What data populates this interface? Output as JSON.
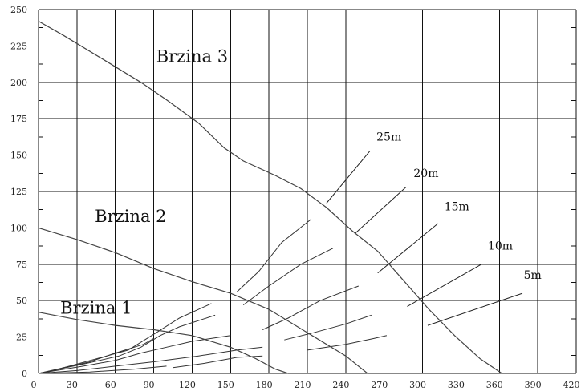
{
  "chart_data": {
    "type": "line",
    "title": "",
    "xlabel": "",
    "ylabel": "",
    "xlim": [
      0,
      420
    ],
    "ylim": [
      0,
      250
    ],
    "x_ticks": [
      0,
      30,
      60,
      90,
      120,
      150,
      180,
      210,
      240,
      270,
      300,
      330,
      360,
      390,
      420
    ],
    "y_ticks": [
      0,
      25,
      50,
      75,
      100,
      125,
      150,
      175,
      200,
      225,
      250
    ],
    "grid": true,
    "series": [
      {
        "name": "Brzina 3",
        "label_pos": [
          120,
          214
        ],
        "points": [
          [
            0,
            242
          ],
          [
            20,
            232
          ],
          [
            50,
            216
          ],
          [
            80,
            200
          ],
          [
            100,
            188
          ],
          [
            125,
            172
          ],
          [
            145,
            155
          ],
          [
            160,
            146
          ],
          [
            185,
            136
          ],
          [
            205,
            127
          ],
          [
            225,
            114
          ],
          [
            245,
            98
          ],
          [
            265,
            84
          ],
          [
            285,
            64
          ],
          [
            305,
            44
          ],
          [
            325,
            26
          ],
          [
            345,
            10
          ],
          [
            362,
            0
          ]
        ]
      },
      {
        "name": "Brzina 2",
        "label_pos": [
          72,
          104
        ],
        "points": [
          [
            0,
            100
          ],
          [
            30,
            92
          ],
          [
            60,
            83
          ],
          [
            90,
            72
          ],
          [
            120,
            63
          ],
          [
            150,
            55
          ],
          [
            180,
            44
          ],
          [
            210,
            28
          ],
          [
            240,
            12
          ],
          [
            257,
            0
          ]
        ]
      },
      {
        "name": "Brzina 1",
        "label_pos": [
          45,
          41
        ],
        "points": [
          [
            0,
            42
          ],
          [
            30,
            37
          ],
          [
            60,
            33
          ],
          [
            90,
            30
          ],
          [
            120,
            26
          ],
          [
            150,
            18
          ],
          [
            170,
            10
          ],
          [
            185,
            3
          ],
          [
            195,
            0
          ]
        ]
      }
    ],
    "iso_curves": [
      {
        "label": "25m",
        "label_pos": [
          264,
          160
        ],
        "leader": [
          [
            225,
            117
          ],
          [
            259,
            153
          ]
        ],
        "segments": [
          [
            [
              0,
              0
            ],
            [
              40,
              8
            ],
            [
              60,
              14
            ],
            [
              82,
              20
            ],
            [
              90,
              24
            ]
          ],
          [
            [
              3,
              0
            ],
            [
              45,
              10
            ],
            [
              70,
              16
            ],
            [
              92,
              28
            ],
            [
              110,
              38
            ],
            [
              135,
              48
            ]
          ],
          [
            [
              155,
              56
            ],
            [
              172,
              70
            ],
            [
              190,
              90
            ],
            [
              213,
              106
            ]
          ]
        ]
      },
      {
        "label": "20m",
        "label_pos": [
          293,
          135
        ],
        "leader": [
          [
            247,
            96
          ],
          [
            287,
            128
          ]
        ],
        "segments": [
          [
            [
              0,
              0
            ],
            [
              38,
              7
            ],
            [
              63,
              12
            ],
            [
              80,
              18
            ],
            [
              95,
              26
            ],
            [
              110,
              32
            ],
            [
              138,
              40
            ]
          ],
          [
            [
              160,
              47
            ],
            [
              180,
              60
            ],
            [
              205,
              75
            ],
            [
              230,
              86
            ]
          ]
        ]
      },
      {
        "label": "15m",
        "label_pos": [
          317,
          112
        ],
        "leader": [
          [
            265,
            69
          ],
          [
            312,
            103
          ]
        ],
        "segments": [
          [
            [
              0,
              0
            ],
            [
              35,
              5
            ],
            [
              60,
              9
            ],
            [
              80,
              14
            ],
            [
              100,
              18
            ],
            [
              120,
              22
            ],
            [
              150,
              26
            ]
          ],
          [
            [
              175,
              30
            ],
            [
              195,
              38
            ],
            [
              220,
              50
            ],
            [
              250,
              60
            ]
          ]
        ]
      },
      {
        "label": "10m",
        "label_pos": [
          351,
          85
        ],
        "leader": [
          [
            288,
            46
          ],
          [
            346,
            75
          ]
        ],
        "segments": [
          [
            [
              0,
              0
            ],
            [
              30,
              2
            ],
            [
              60,
              5
            ],
            [
              90,
              8
            ],
            [
              125,
              12
            ],
            [
              155,
              16
            ],
            [
              175,
              18
            ]
          ],
          [
            [
              192,
              23
            ],
            [
              215,
              28
            ],
            [
              240,
              34
            ],
            [
              260,
              40
            ]
          ]
        ]
      },
      {
        "label": "5m",
        "label_pos": [
          379,
          65
        ],
        "leader": [
          [
            304,
            33
          ],
          [
            378,
            55
          ]
        ],
        "segments": [
          [
            [
              0,
              0
            ],
            [
              40,
              1
            ],
            [
              75,
              3
            ],
            [
              100,
              5
            ]
          ],
          [
            [
              105,
              4
            ],
            [
              130,
              7
            ],
            [
              155,
              11
            ],
            [
              175,
              12
            ]
          ],
          [
            [
              210,
              16
            ],
            [
              240,
              20
            ],
            [
              262,
              24
            ],
            [
              272,
              26
            ]
          ]
        ]
      }
    ]
  }
}
